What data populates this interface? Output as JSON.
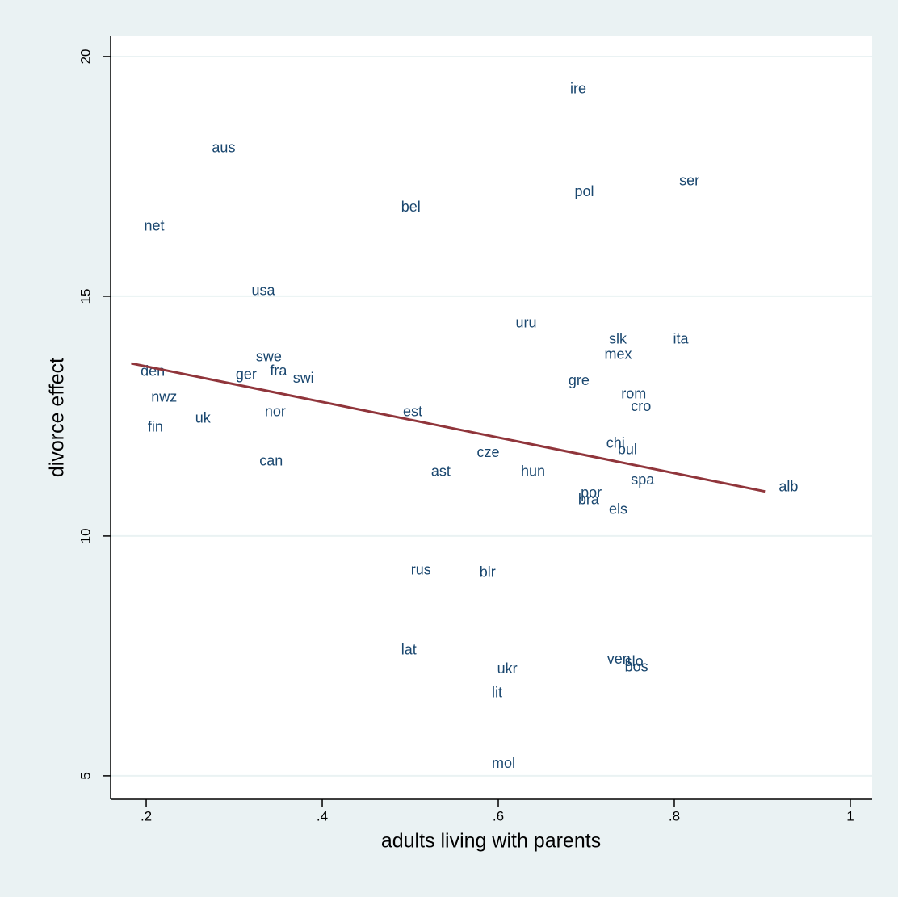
{
  "chart_data": {
    "type": "scatter",
    "x_label": "adults living with parents",
    "y_label": "divorce effect",
    "xlim": [
      0.1596,
      1.0248
    ],
    "ylim": [
      4.51,
      20.42
    ],
    "xticks": [
      {
        "value": 0.2,
        "label": ".2"
      },
      {
        "value": 0.4,
        "label": ".4"
      },
      {
        "value": 0.6,
        "label": ".6"
      },
      {
        "value": 0.8,
        "label": ".8"
      },
      1
    ],
    "yticks": [
      5,
      10,
      15,
      20
    ],
    "grid": true,
    "points": {
      "color": "#1a476f",
      "labels": [
        "ire",
        "aus",
        "ser",
        "pol",
        "bel",
        "net",
        "usa",
        "uru",
        "slk",
        "ita",
        "mex",
        "swe",
        "den",
        "fra",
        "ger",
        "swi",
        "gre",
        "nwz",
        "rom",
        "cro",
        "nor",
        "est",
        "uk",
        "fin",
        "chi",
        "bul",
        "cze",
        "can",
        "ast",
        "hun",
        "spa",
        "alb",
        "por",
        "bra",
        "els",
        "rus",
        "blr",
        "lat",
        "ven",
        "slo",
        "bos",
        "ukr",
        "lit",
        "mol"
      ],
      "x": [
        0.667,
        0.26,
        0.791,
        0.672,
        0.475,
        0.183,
        0.305,
        0.605,
        0.711,
        0.784,
        0.706,
        0.31,
        0.179,
        0.326,
        0.287,
        0.352,
        0.665,
        0.191,
        0.725,
        0.736,
        0.32,
        0.477,
        0.241,
        0.187,
        0.708,
        0.721,
        0.561,
        0.314,
        0.509,
        0.611,
        0.736,
        0.904,
        0.679,
        0.676,
        0.711,
        0.486,
        0.564,
        0.475,
        0.709,
        0.729,
        0.729,
        0.584,
        0.578,
        0.578
      ],
      "values": [
        19.31,
        18.08,
        17.39,
        17.17,
        16.85,
        16.45,
        15.1,
        14.43,
        14.09,
        14.09,
        13.77,
        13.72,
        13.42,
        13.43,
        13.35,
        13.28,
        13.23,
        12.88,
        12.95,
        12.69,
        12.58,
        12.58,
        12.44,
        12.26,
        11.92,
        11.79,
        11.73,
        11.55,
        11.33,
        11.33,
        11.16,
        11.01,
        10.89,
        10.74,
        10.54,
        9.28,
        9.23,
        7.61,
        7.42,
        7.37,
        7.26,
        7.22,
        6.72,
        5.25
      ]
    },
    "fit_line": {
      "color": "#90353b",
      "x": [
        0.183,
        0.903
      ],
      "values": [
        13.6,
        10.93
      ]
    }
  }
}
